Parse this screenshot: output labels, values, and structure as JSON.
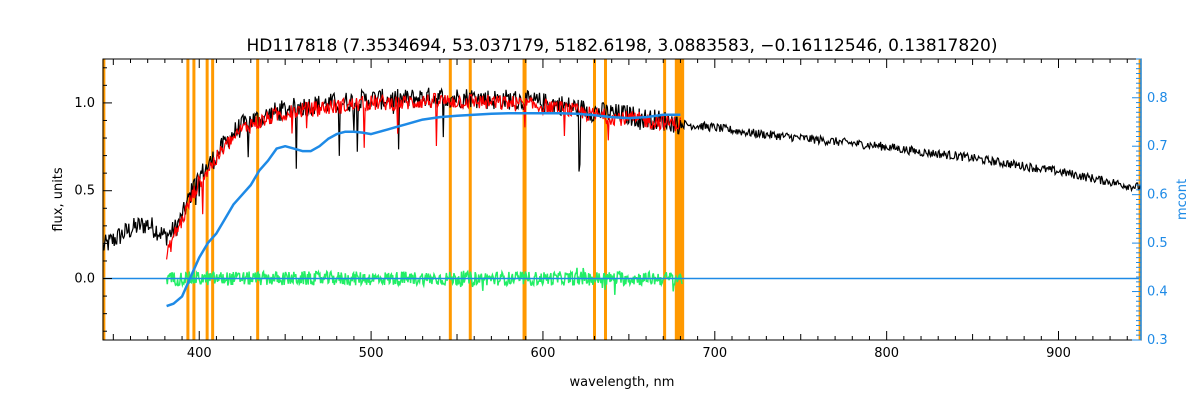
{
  "chart_data": {
    "type": "line",
    "title": "HD117818    (7.3534694, 53.037179, 5182.6198, 3.0883583, −0.16112546, 0.13817820)",
    "xlabel": "wavelength, nm",
    "ylabel": "flux, units",
    "y2label": "mcont",
    "xlim": [
      344,
      948
    ],
    "ylim": [
      -0.35,
      1.25
    ],
    "y2lim": [
      0.3,
      0.88
    ],
    "x_ticks": [
      400,
      500,
      600,
      700,
      800,
      900
    ],
    "y_ticks": [
      0.0,
      0.5,
      1.0
    ],
    "y_tick_labels": [
      "0.0",
      "0.5",
      "1.0"
    ],
    "y2_ticks": [
      0.3,
      0.4,
      0.5,
      0.6,
      0.7,
      0.8
    ],
    "y2_tick_labels": [
      "0.3",
      "0.4",
      "0.5",
      "0.6",
      "0.7",
      "0.8"
    ],
    "grid": false,
    "colors": {
      "observed": "#000000",
      "model": "#ff0000",
      "continuum": "#1e8ae6",
      "residuals": "#22ee66",
      "masks": "#ff9900",
      "right_axis": "#1e8ae6"
    },
    "mask_lines": [
      344.5,
      393.4,
      396.9,
      404.6,
      407.8,
      434.0,
      546.1,
      557.7,
      589.0,
      589.6,
      630.0,
      636.4,
      670.8,
      677.6,
      678.6,
      679.5,
      680.4,
      681.3,
      947.5
    ],
    "series": [
      {
        "id": "observed",
        "x": [
          344,
          350,
          355,
          360,
          365,
          370,
          375,
          380,
          385,
          390,
          395,
          400,
          405,
          410,
          415,
          420,
          425,
          430,
          435,
          440,
          445,
          450,
          460,
          470,
          480,
          490,
          500,
          510,
          520,
          530,
          540,
          550,
          560,
          570,
          580,
          590,
          600,
          610,
          620,
          630,
          640,
          650,
          660,
          670,
          680,
          700,
          720,
          740,
          760,
          780,
          800,
          820,
          840,
          860,
          880,
          900,
          920,
          940,
          947
        ],
        "y": [
          0.18,
          0.22,
          0.25,
          0.28,
          0.3,
          0.31,
          0.28,
          0.24,
          0.27,
          0.35,
          0.48,
          0.58,
          0.64,
          0.7,
          0.77,
          0.83,
          0.87,
          0.9,
          0.91,
          0.93,
          0.95,
          0.96,
          0.98,
          0.99,
          1.0,
          1.01,
          1.02,
          1.02,
          1.02,
          1.03,
          1.03,
          1.03,
          1.03,
          1.02,
          1.02,
          1.01,
          1.0,
          0.99,
          0.97,
          0.95,
          0.94,
          0.93,
          0.91,
          0.9,
          0.88,
          0.86,
          0.83,
          0.81,
          0.79,
          0.77,
          0.75,
          0.72,
          0.7,
          0.67,
          0.64,
          0.61,
          0.57,
          0.53,
          0.52
        ]
      },
      {
        "id": "model",
        "x": [
          381,
          385,
          390,
          395,
          400,
          405,
          410,
          415,
          420,
          425,
          430,
          435,
          440,
          445,
          450,
          460,
          470,
          480,
          490,
          500,
          510,
          520,
          530,
          540,
          550,
          560,
          570,
          580,
          590,
          600,
          610,
          620,
          630,
          640,
          650,
          660,
          670,
          680
        ],
        "y": [
          0.12,
          0.24,
          0.33,
          0.45,
          0.55,
          0.62,
          0.68,
          0.75,
          0.8,
          0.85,
          0.88,
          0.89,
          0.91,
          0.93,
          0.94,
          0.96,
          0.97,
          0.98,
          0.99,
          1.0,
          1.0,
          1.0,
          1.01,
          1.01,
          1.01,
          1.01,
          1.0,
          1.0,
          0.99,
          0.98,
          0.97,
          0.95,
          0.93,
          0.92,
          0.91,
          0.9,
          0.89,
          0.88
        ]
      },
      {
        "id": "continuum",
        "axis": "right",
        "x": [
          381,
          385,
          390,
          395,
          400,
          405,
          410,
          415,
          420,
          425,
          430,
          435,
          440,
          445,
          450,
          455,
          460,
          465,
          470,
          475,
          480,
          485,
          490,
          495,
          500,
          505,
          510,
          515,
          520,
          530,
          540,
          550,
          560,
          570,
          580,
          590,
          600,
          610,
          620,
          630,
          640,
          650,
          660,
          670,
          680
        ],
        "y": [
          0.37,
          0.375,
          0.39,
          0.43,
          0.47,
          0.5,
          0.52,
          0.55,
          0.58,
          0.6,
          0.62,
          0.65,
          0.67,
          0.695,
          0.7,
          0.695,
          0.69,
          0.69,
          0.7,
          0.715,
          0.725,
          0.73,
          0.73,
          0.728,
          0.725,
          0.73,
          0.735,
          0.74,
          0.745,
          0.755,
          0.76,
          0.763,
          0.765,
          0.767,
          0.768,
          0.768,
          0.768,
          0.768,
          0.767,
          0.764,
          0.76,
          0.758,
          0.76,
          0.765,
          0.765
        ]
      },
      {
        "id": "residuals",
        "x": [
          381,
          681
        ],
        "y": [
          0.0,
          0.0
        ]
      },
      {
        "id": "zero_line",
        "x": [
          344,
          947
        ],
        "y": [
          0.0,
          0.0
        ]
      }
    ]
  }
}
